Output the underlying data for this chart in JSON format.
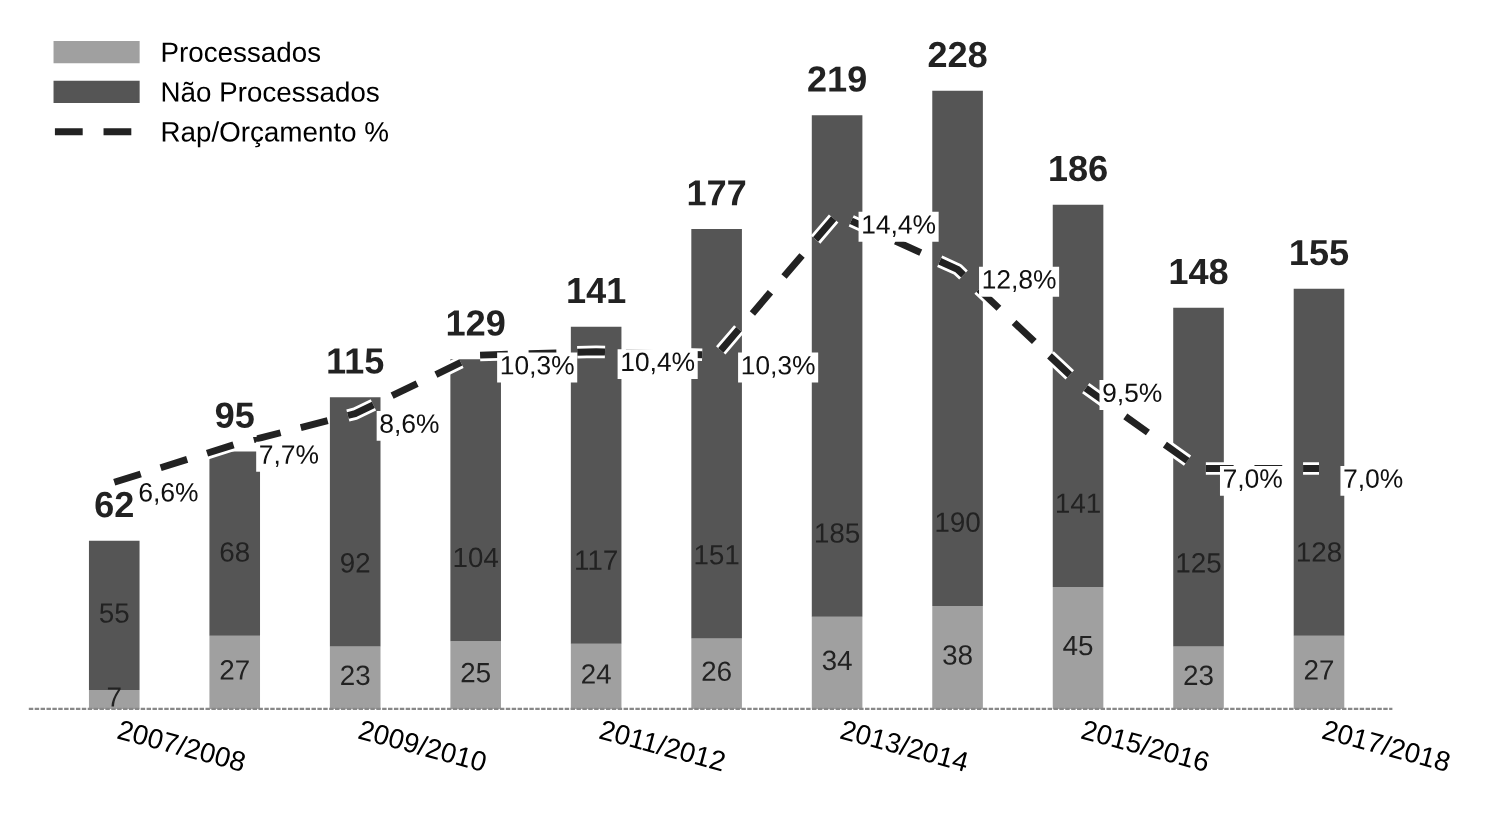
{
  "chart_data": {
    "type": "bar",
    "stacked": true,
    "data_labels": true,
    "legend": "top left",
    "grid": false,
    "tick_labels": "x",
    "categories": [
      "2007/2008",
      null,
      "2009/2010",
      null,
      "2011/2012",
      null,
      "2013/2014",
      null,
      "2015/2016",
      null,
      "2017/2018"
    ],
    "series": [
      {
        "name": "Processados",
        "color": "#a0a0a0",
        "values": [
          7,
          27,
          23,
          25,
          24,
          26,
          34,
          38,
          45,
          23,
          27
        ]
      },
      {
        "name": "Não Processados",
        "color": "#555555",
        "values": [
          55,
          68,
          92,
          104,
          117,
          151,
          185,
          190,
          141,
          125,
          128
        ]
      },
      {
        "name": "Rap/Orçamento %",
        "type": "line",
        "axis": "y2",
        "line_style": "dashed",
        "color": "#222222",
        "values": [
          6.6,
          7.7,
          8.6,
          10.3,
          10.4,
          10.3,
          14.4,
          12.8,
          9.5,
          7.0,
          7.0
        ],
        "value_labels": [
          "6,6%",
          "7,7%",
          "8,6%",
          "10,3%",
          "10,4%",
          "10,3%",
          "14,4%",
          "12,8%",
          "9,5%",
          "7,0%",
          "7,0%"
        ]
      }
    ],
    "totals": [
      "62",
      "95",
      "115",
      "129",
      "141",
      "177",
      "219",
      "228",
      "186",
      "148",
      "155"
    ]
  }
}
